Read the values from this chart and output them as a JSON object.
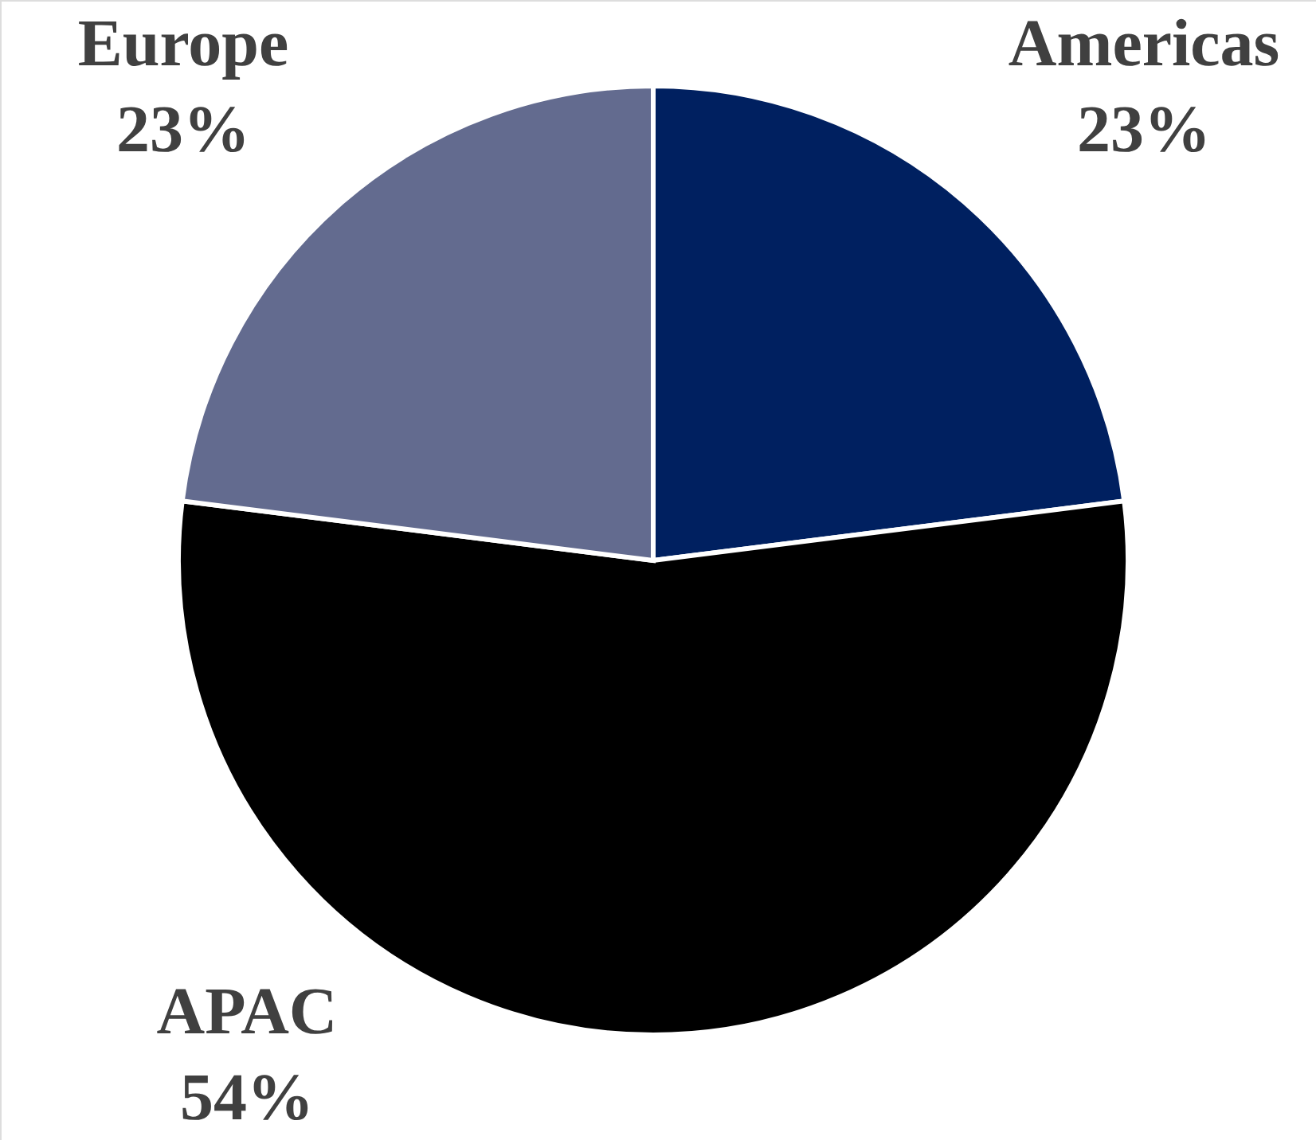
{
  "chart_data": {
    "type": "pie",
    "categories": [
      "Americas",
      "APAC",
      "Europe"
    ],
    "values": [
      23,
      54,
      23
    ],
    "colors": [
      "#002060",
      "#000000",
      "#636b8f"
    ],
    "value_labels": [
      "23%",
      "54%",
      "23%"
    ]
  }
}
